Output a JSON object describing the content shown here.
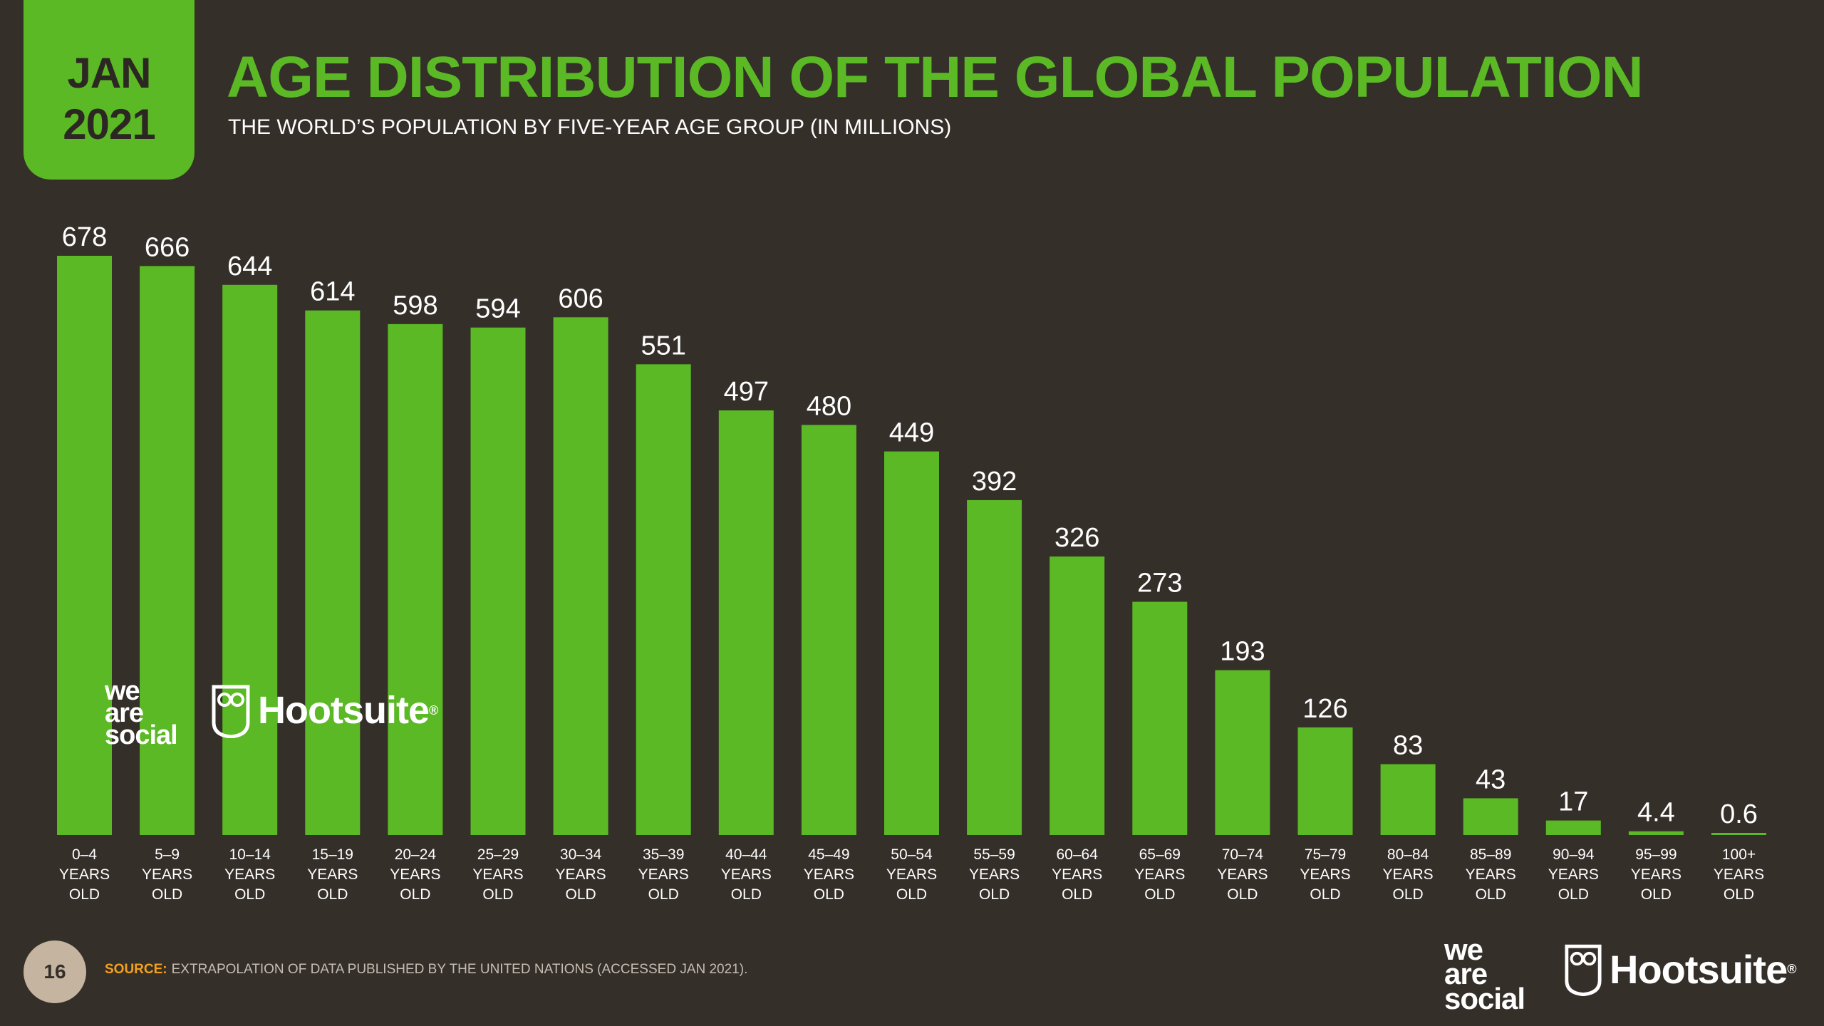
{
  "header": {
    "date_line1": "JAN",
    "date_line2": "2021",
    "title": "AGE DISTRIBUTION OF THE GLOBAL POPULATION",
    "subtitle": "THE WORLD’S POPULATION BY FIVE-YEAR AGE GROUP (IN MILLIONS)"
  },
  "chart_data": {
    "type": "bar",
    "categories": [
      [
        "0–4",
        "YEARS",
        "OLD"
      ],
      [
        "5–9",
        "YEARS",
        "OLD"
      ],
      [
        "10–14",
        "YEARS",
        "OLD"
      ],
      [
        "15–19",
        "YEARS",
        "OLD"
      ],
      [
        "20–24",
        "YEARS",
        "OLD"
      ],
      [
        "25–29",
        "YEARS",
        "OLD"
      ],
      [
        "30–34",
        "YEARS",
        "OLD"
      ],
      [
        "35–39",
        "YEARS",
        "OLD"
      ],
      [
        "40–44",
        "YEARS",
        "OLD"
      ],
      [
        "45–49",
        "YEARS",
        "OLD"
      ],
      [
        "50–54",
        "YEARS",
        "OLD"
      ],
      [
        "55–59",
        "YEARS",
        "OLD"
      ],
      [
        "60–64",
        "YEARS",
        "OLD"
      ],
      [
        "65–69",
        "YEARS",
        "OLD"
      ],
      [
        "70–74",
        "YEARS",
        "OLD"
      ],
      [
        "75–79",
        "YEARS",
        "OLD"
      ],
      [
        "80–84",
        "YEARS",
        "OLD"
      ],
      [
        "85–89",
        "YEARS",
        "OLD"
      ],
      [
        "90–94",
        "YEARS",
        "OLD"
      ],
      [
        "95–99",
        "YEARS",
        "OLD"
      ],
      [
        "100+",
        "YEARS",
        "OLD"
      ]
    ],
    "values": [
      678,
      666,
      644,
      614,
      598,
      594,
      606,
      551,
      497,
      480,
      449,
      392,
      326,
      273,
      193,
      126,
      83,
      43,
      17,
      4.4,
      0.6
    ],
    "value_labels": [
      "678",
      "666",
      "644",
      "614",
      "598",
      "594",
      "606",
      "551",
      "497",
      "480",
      "449",
      "392",
      "326",
      "273",
      "193",
      "126",
      "83",
      "43",
      "17",
      "4.4",
      "0.6"
    ],
    "xlabel": "",
    "ylabel": "",
    "ylim": [
      0,
      678
    ],
    "grid": false,
    "bar_color": "#5ab924"
  },
  "logos": {
    "was_line1": "we",
    "was_line2": "are",
    "was_line3": "social",
    "hootsuite": "Hootsuite",
    "registered": "®"
  },
  "footer": {
    "page_number": "16",
    "source_key": "SOURCE:",
    "source_text": "EXTRAPOLATION OF DATA PUBLISHED BY THE UNITED NATIONS (ACCESSED JAN 2021)."
  },
  "colors": {
    "background": "#352f2a",
    "accent_green": "#5ab924",
    "source_orange": "#f3a01b",
    "page_badge": "#c5b49f"
  }
}
